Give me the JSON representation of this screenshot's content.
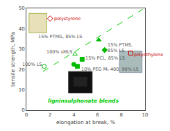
{
  "chart_data": {
    "type": "scatter",
    "xlabel": "elongation at break, %",
    "ylabel": "tensile strength, MPa",
    "xlim": [
      0,
      10
    ],
    "ylim": [
      0,
      50
    ],
    "xticks": [
      0,
      2,
      4,
      6,
      8,
      10
    ],
    "yticks": [
      0,
      10,
      20,
      30,
      40,
      50
    ],
    "grid": false,
    "points": [
      {
        "x": 2.0,
        "y": 45.0,
        "marker": "diamond-open",
        "color": "#cc0000"
      },
      {
        "x": 8.8,
        "y": 28.0,
        "marker": "square-open",
        "color": "#cc0000"
      },
      {
        "x": 1.5,
        "y": 21.5,
        "marker": "circle-open",
        "color": "#00bb00"
      },
      {
        "x": 4.1,
        "y": 27.5,
        "marker": "triangle-up-open",
        "color": "#00bb00"
      },
      {
        "x": 4.7,
        "y": 25.0,
        "marker": "square",
        "color": "#00bb00"
      },
      {
        "x": 4.3,
        "y": 21.5,
        "marker": "square",
        "color": "#00bb00"
      },
      {
        "x": 6.1,
        "y": 34.5,
        "marker": "triangle-up",
        "color": "#00bb00"
      },
      {
        "x": 6.6,
        "y": 29.5,
        "marker": "diamond",
        "color": "#00bb00"
      },
      {
        "x": 4.0,
        "y": 22.5,
        "marker": "circle",
        "color": "#00bb00"
      }
    ],
    "trendline": {
      "x": [
        1.4,
        9.8
      ],
      "y": [
        19.0,
        49.5
      ],
      "color": "#00cc00",
      "line_style": "dash"
    },
    "annotations": [
      {
        "text": "polystyrene",
        "x": 2.2,
        "y": 45.0,
        "color": "#cc0000",
        "align": "left"
      },
      {
        "text": "polyethylene",
        "x": 8.95,
        "y": 27.2,
        "color": "#cc0000",
        "align": "left"
      },
      {
        "text": "100% LS",
        "x": 1.4,
        "y": 22.5,
        "color": "#555555",
        "align": "right"
      },
      {
        "text": "100% sMLS",
        "x": 3.95,
        "y": 28.5,
        "color": "#555555",
        "align": "right"
      },
      {
        "text": "15% PCL, 85% LS",
        "x": 4.85,
        "y": 25.5,
        "color": "#555555",
        "align": "left"
      },
      {
        "text": "10% PEG Mₙ 400, 90% LS",
        "x": 4.5,
        "y": 20.0,
        "color": "#555555",
        "align": "left"
      },
      {
        "text": "15% PTMG, 85% LS",
        "x": 4.8,
        "y": 36.0,
        "color": "#555555",
        "align": "right"
      },
      {
        "text": "15% PTMS,\n85% LS",
        "x": 6.75,
        "y": 30.5,
        "color": "#555555",
        "align": "left"
      }
    ],
    "bottom_label": {
      "text": "ligninsulphonate blends",
      "x": 4.8,
      "y": 4.5,
      "color": "#00cc00"
    },
    "rectangles": [
      {
        "x": 0.22,
        "y": 38.0,
        "w": 1.5,
        "h": 9.5,
        "color": "#99aa33",
        "fill": "#e8e0b8"
      },
      {
        "x": 7.85,
        "y": 18.5,
        "w": 1.9,
        "h": 10.5,
        "color": "#778899",
        "fill": "#aabbbb"
      },
      {
        "x": 3.55,
        "y": 8.5,
        "w": 2.0,
        "h": 10.5,
        "color": "#222222",
        "fill": "#111111"
      },
      {
        "x": 3.95,
        "y": 11.5,
        "w": 1.2,
        "h": 5.0,
        "color": "#111111",
        "fill": "#222222"
      }
    ]
  }
}
